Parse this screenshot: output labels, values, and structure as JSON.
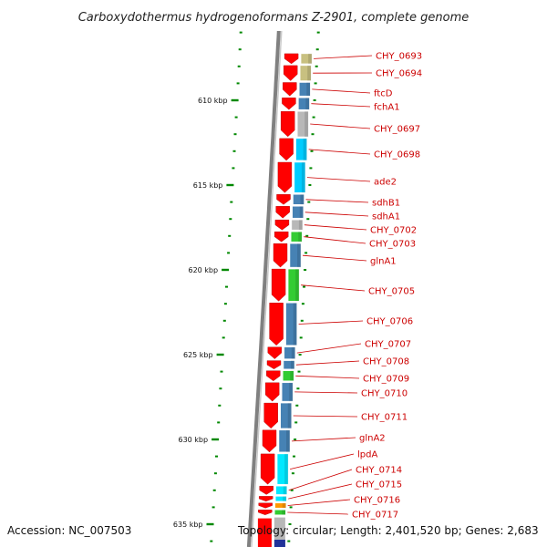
{
  "title": "Carboxydothermus hydrogenoformans Z-2901, complete genome",
  "accession": "Accession: NC_007503",
  "summary": "Topology: circular; Length: 2,401,520 bp; Genes: 2,683",
  "colors": {
    "gene_arrow": "#ff0000",
    "tick": "#008800",
    "label": "#cc0000",
    "backbone": "#808080",
    "cog_lightblue": "#00ccff",
    "cog_steelblue": "#4682b4",
    "cog_khaki": "#c8c080",
    "cog_gray": "#b8b8b8",
    "cog_green": "#33cc33",
    "cog_cyan": "#00e8ff",
    "cog_orange": "#ff9900",
    "cog_navy": "#223399"
  },
  "ticks": [
    {
      "kbp": 610,
      "label": "610 kbp"
    },
    {
      "kbp": 615,
      "label": "615 kbp"
    },
    {
      "kbp": 620,
      "label": "620 kbp"
    },
    {
      "kbp": 625,
      "label": "625 kbp"
    },
    {
      "kbp": 630,
      "label": "630 kbp"
    },
    {
      "kbp": 635,
      "label": "635 kbp"
    }
  ],
  "genes": [
    {
      "name": "CHY_0693",
      "start": 607.2,
      "end": 607.9,
      "cog": "cog_khaki"
    },
    {
      "name": "CHY_0694",
      "start": 607.9,
      "end": 608.9,
      "cog": "cog_khaki"
    },
    {
      "name": "ftcD",
      "start": 608.9,
      "end": 609.8,
      "cog": "cog_steelblue"
    },
    {
      "name": "fchA1",
      "start": 609.8,
      "end": 610.6,
      "cog": "cog_steelblue"
    },
    {
      "name": "CHY_0697",
      "start": 610.6,
      "end": 612.2,
      "cog": "cog_gray"
    },
    {
      "name": "CHY_0698",
      "start": 612.2,
      "end": 613.6,
      "cog": "cog_lightblue"
    },
    {
      "name": "ade2",
      "start": 613.6,
      "end": 615.5,
      "cog": "cog_lightblue"
    },
    {
      "name": "sdhB1",
      "start": 615.5,
      "end": 616.2,
      "cog": "cog_steelblue"
    },
    {
      "name": "sdhA1",
      "start": 616.2,
      "end": 617.0,
      "cog": "cog_steelblue"
    },
    {
      "name": "CHY_0702",
      "start": 617.0,
      "end": 617.7,
      "cog": "cog_gray"
    },
    {
      "name": "CHY_0703",
      "start": 617.7,
      "end": 618.4,
      "cog": "cog_green"
    },
    {
      "name": "glnA1",
      "start": 618.4,
      "end": 619.9,
      "cog": "cog_steelblue"
    },
    {
      "name": "CHY_0705",
      "start": 619.9,
      "end": 621.9,
      "cog": "cog_green"
    },
    {
      "name": "CHY_0706",
      "start": 621.9,
      "end": 624.5,
      "cog": "cog_steelblue"
    },
    {
      "name": "CHY_0707",
      "start": 624.5,
      "end": 625.3,
      "cog": "cog_steelblue"
    },
    {
      "name": "CHY_0708",
      "start": 625.3,
      "end": 625.9,
      "cog": "cog_steelblue"
    },
    {
      "name": "CHY_0709",
      "start": 625.9,
      "end": 626.6,
      "cog": "cog_green"
    },
    {
      "name": "CHY_0710",
      "start": 626.6,
      "end": 627.8,
      "cog": "cog_steelblue"
    },
    {
      "name": "CHY_0711",
      "start": 627.8,
      "end": 629.4,
      "cog": "cog_steelblue"
    },
    {
      "name": "glnA2",
      "start": 629.4,
      "end": 630.8,
      "cog": "cog_steelblue"
    },
    {
      "name": "lpdA",
      "start": 630.8,
      "end": 632.7,
      "cog": "cog_cyan"
    },
    {
      "name": "CHY_0714",
      "start": 632.7,
      "end": 633.3,
      "cog": "cog_cyan"
    },
    {
      "name": "CHY_0715",
      "start": 633.3,
      "end": 633.7,
      "cog": "cog_cyan"
    },
    {
      "name": "CHY_0716",
      "start": 633.7,
      "end": 634.1,
      "cog": "cog_orange"
    },
    {
      "name": "CHY_0717",
      "start": 634.1,
      "end": 634.5,
      "cog": "cog_green"
    }
  ]
}
